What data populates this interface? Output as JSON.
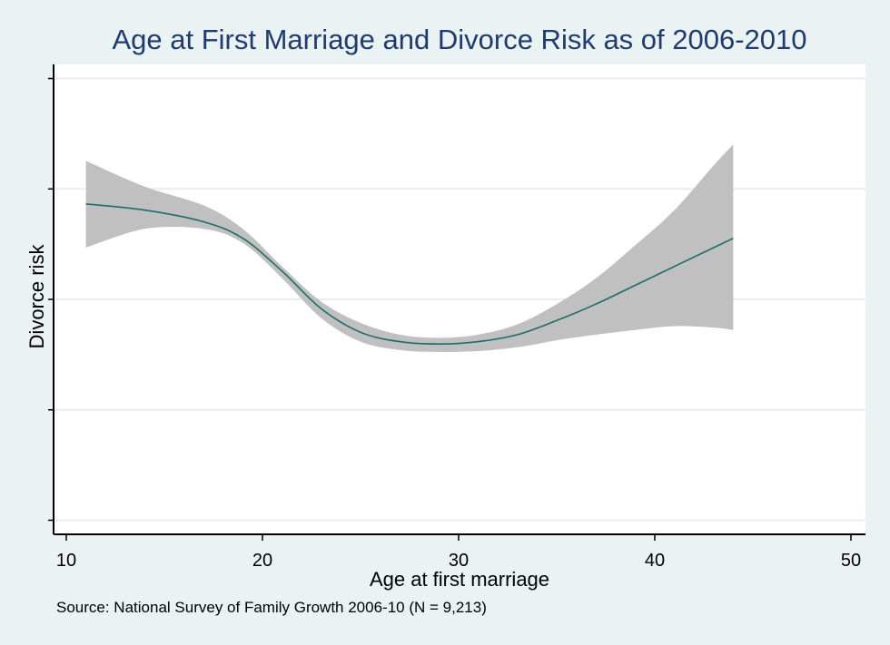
{
  "chart_data": {
    "type": "line",
    "title": "Age at First Marriage and Divorce Risk as of 2006-2010",
    "xlabel": "Age at first marriage",
    "ylabel": "Divorce risk",
    "xlim": [
      10,
      50
    ],
    "x_ticks": [
      "10",
      "20",
      "30",
      "40",
      "50"
    ],
    "y_ticks_labeled": false,
    "grid": true,
    "legend": "none",
    "series": [
      {
        "style": "fitted line with shaded confidence band",
        "x": [
          11,
          14,
          17,
          19,
          21,
          23,
          25,
          27,
          29,
          31,
          33,
          35,
          37,
          39,
          41,
          43,
          44
        ],
        "y": [
          0.703,
          0.69,
          0.665,
          0.63,
          0.56,
          0.48,
          0.43,
          0.41,
          0.405,
          0.41,
          0.425,
          0.455,
          0.49,
          0.53,
          0.57,
          0.61,
          0.63
        ],
        "lower": [
          0.61,
          0.65,
          0.65,
          0.62,
          0.545,
          0.46,
          0.41,
          0.392,
          0.388,
          0.39,
          0.398,
          0.413,
          0.425,
          0.435,
          0.443,
          0.44,
          0.435
        ],
        "upper": [
          0.795,
          0.74,
          0.7,
          0.65,
          0.57,
          0.495,
          0.45,
          0.425,
          0.418,
          0.425,
          0.447,
          0.49,
          0.545,
          0.615,
          0.69,
          0.785,
          0.83
        ]
      }
    ],
    "colors": {
      "band": "#c0c0c0",
      "line": "#1a6e6a",
      "grid": "#e6eeef",
      "plot_bg": "#ffffff",
      "page_bg": "#eaf2f3"
    }
  },
  "source_note": "Source: National Survey of Family Growth 2006-10 (N = 9,213)"
}
